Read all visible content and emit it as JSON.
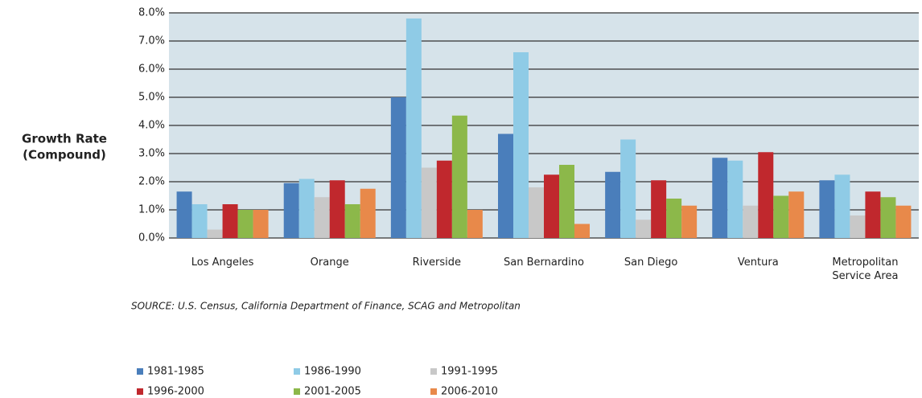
{
  "chart_data": {
    "type": "bar",
    "ylabel": "Growth Rate",
    "ylabel_note": "(Compound)",
    "source": "SOURCE: U.S. Census, California Department of Finance, SCAG and Metropolitan",
    "categories": [
      "Los Angeles",
      "Orange",
      "Riverside",
      "San Bernardino",
      "San Diego",
      "Ventura",
      "Metropolitan Service Area"
    ],
    "series": [
      {
        "name": "1981-1985",
        "color": "#4a7ebb",
        "values": [
          1.65,
          1.95,
          5.0,
          3.7,
          2.35,
          2.85,
          2.05
        ]
      },
      {
        "name": "1986-1990",
        "color": "#8fcbe6",
        "values": [
          1.2,
          2.1,
          7.8,
          6.6,
          3.5,
          2.75,
          2.25
        ]
      },
      {
        "name": "1991-1995",
        "color": "#c8c8c8",
        "values": [
          0.3,
          1.45,
          2.5,
          1.8,
          0.65,
          1.15,
          0.8
        ]
      },
      {
        "name": "1996-2000",
        "color": "#c0282d",
        "values": [
          1.2,
          2.05,
          2.75,
          2.25,
          2.05,
          3.05,
          1.65
        ]
      },
      {
        "name": "2001-2005",
        "color": "#8cb84a",
        "values": [
          1.0,
          1.2,
          4.35,
          2.6,
          1.4,
          1.5,
          1.45
        ]
      },
      {
        "name": "2006-2010",
        "color": "#e8894a",
        "values": [
          1.0,
          1.75,
          1.0,
          0.5,
          1.15,
          1.65,
          1.15
        ]
      }
    ],
    "ylim": [
      0,
      8
    ],
    "yticks": [
      {
        "value": 0,
        "label": "0.0%"
      },
      {
        "value": 1,
        "label": "1.0%"
      },
      {
        "value": 2,
        "label": "2.0%"
      },
      {
        "value": 3,
        "label": "3.0%"
      },
      {
        "value": 4,
        "label": "4.0%"
      },
      {
        "value": 5,
        "label": "5.0%"
      },
      {
        "value": 6,
        "label": "6.0%"
      },
      {
        "value": 7,
        "label": "7.0%"
      },
      {
        "value": 8,
        "label": "8.0%"
      }
    ],
    "grid": true,
    "plot_background": "#d6e3ea"
  }
}
